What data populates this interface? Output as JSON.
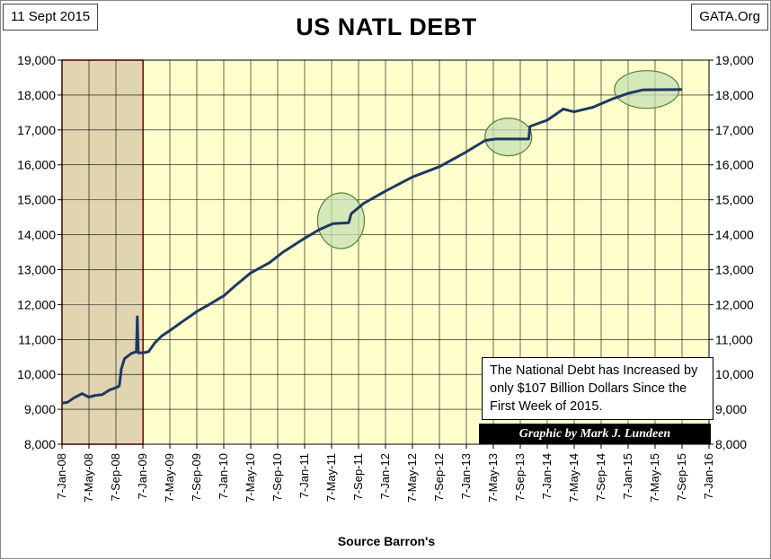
{
  "header": {
    "date_label": "11 Sept 2015",
    "source_label": "GATA.Org"
  },
  "note": {
    "text": "The National Debt has Increased by only $107 Billion Dollars Since the First Week of 2015.",
    "credit": "Graphic by Mark J. Lundeen"
  },
  "colors": {
    "plot_background": "#ffffcc",
    "shaded_region": "#e1d4b0",
    "shaded_border": "#c00000",
    "line": "#1f3864",
    "grid": "#000000",
    "highlight_fill": "#c6e0b4",
    "highlight_stroke": "#548235"
  },
  "chart_data": {
    "type": "line",
    "title": "US NATL DEBT",
    "xlabel": "Source Barron's",
    "ylabel": "",
    "ylim": [
      8000,
      19000
    ],
    "y_ticks": [
      "8,000",
      "9,000",
      "10,000",
      "11,000",
      "12,000",
      "13,000",
      "14,000",
      "15,000",
      "16,000",
      "17,000",
      "18,000",
      "19,000"
    ],
    "x_ticks": [
      "7-Jan-08",
      "7-May-08",
      "7-Sep-08",
      "7-Jan-09",
      "7-May-09",
      "7-Sep-09",
      "7-Jan-10",
      "7-May-10",
      "7-Sep-10",
      "7-Jan-11",
      "7-May-11",
      "7-Sep-11",
      "7-Jan-12",
      "7-May-12",
      "7-Sep-12",
      "7-Jan-13",
      "7-May-13",
      "7-Sep-13",
      "7-Jan-14",
      "7-May-14",
      "7-Sep-14",
      "7-Jan-15",
      "7-May-15",
      "7-Sep-15",
      "7-Jan-16"
    ],
    "xlim": [
      "2008-01-07",
      "2016-01-07"
    ],
    "shaded_range": [
      "2008-01-07",
      "2009-01-07"
    ],
    "highlights": [
      {
        "x": "2011-06-20",
        "y": 14400
      },
      {
        "x": "2013-07-15",
        "y": 16800
      },
      {
        "x": "2015-04-01",
        "y": 18160
      }
    ],
    "grid": true,
    "series": [
      {
        "points": [
          [
            "2008-01-07",
            9180
          ],
          [
            "2008-02-01",
            9200
          ],
          [
            "2008-03-01",
            9330
          ],
          [
            "2008-04-07",
            9450
          ],
          [
            "2008-05-07",
            9350
          ],
          [
            "2008-06-07",
            9400
          ],
          [
            "2008-07-07",
            9420
          ],
          [
            "2008-08-07",
            9550
          ],
          [
            "2008-09-07",
            9620
          ],
          [
            "2008-09-22",
            9670
          ],
          [
            "2008-10-01",
            10150
          ],
          [
            "2008-10-15",
            10450
          ],
          [
            "2008-11-15",
            10600
          ],
          [
            "2008-12-08",
            10650
          ],
          [
            "2008-12-12",
            11650
          ],
          [
            "2008-12-16",
            10620
          ],
          [
            "2009-01-07",
            10620
          ],
          [
            "2009-02-01",
            10650
          ],
          [
            "2009-03-01",
            10900
          ],
          [
            "2009-04-01",
            11100
          ],
          [
            "2009-05-07",
            11250
          ],
          [
            "2009-07-01",
            11500
          ],
          [
            "2009-09-07",
            11800
          ],
          [
            "2009-11-01",
            12000
          ],
          [
            "2010-01-07",
            12250
          ],
          [
            "2010-03-01",
            12550
          ],
          [
            "2010-05-07",
            12900
          ],
          [
            "2010-08-01",
            13200
          ],
          [
            "2010-10-01",
            13500
          ],
          [
            "2011-01-07",
            13900
          ],
          [
            "2011-03-15",
            14150
          ],
          [
            "2011-05-15",
            14320
          ],
          [
            "2011-07-25",
            14340
          ],
          [
            "2011-08-05",
            14600
          ],
          [
            "2011-10-01",
            14900
          ],
          [
            "2012-01-07",
            15250
          ],
          [
            "2012-05-07",
            15650
          ],
          [
            "2012-09-07",
            15950
          ],
          [
            "2012-12-31",
            16350
          ],
          [
            "2013-04-01",
            16700
          ],
          [
            "2013-05-20",
            16740
          ],
          [
            "2013-10-15",
            16740
          ],
          [
            "2013-10-20",
            17100
          ],
          [
            "2014-01-07",
            17280
          ],
          [
            "2014-03-20",
            17600
          ],
          [
            "2014-05-07",
            17520
          ],
          [
            "2014-08-01",
            17650
          ],
          [
            "2014-11-01",
            17900
          ],
          [
            "2015-01-07",
            18050
          ],
          [
            "2015-03-16",
            18150
          ],
          [
            "2015-09-07",
            18160
          ]
        ]
      }
    ]
  }
}
